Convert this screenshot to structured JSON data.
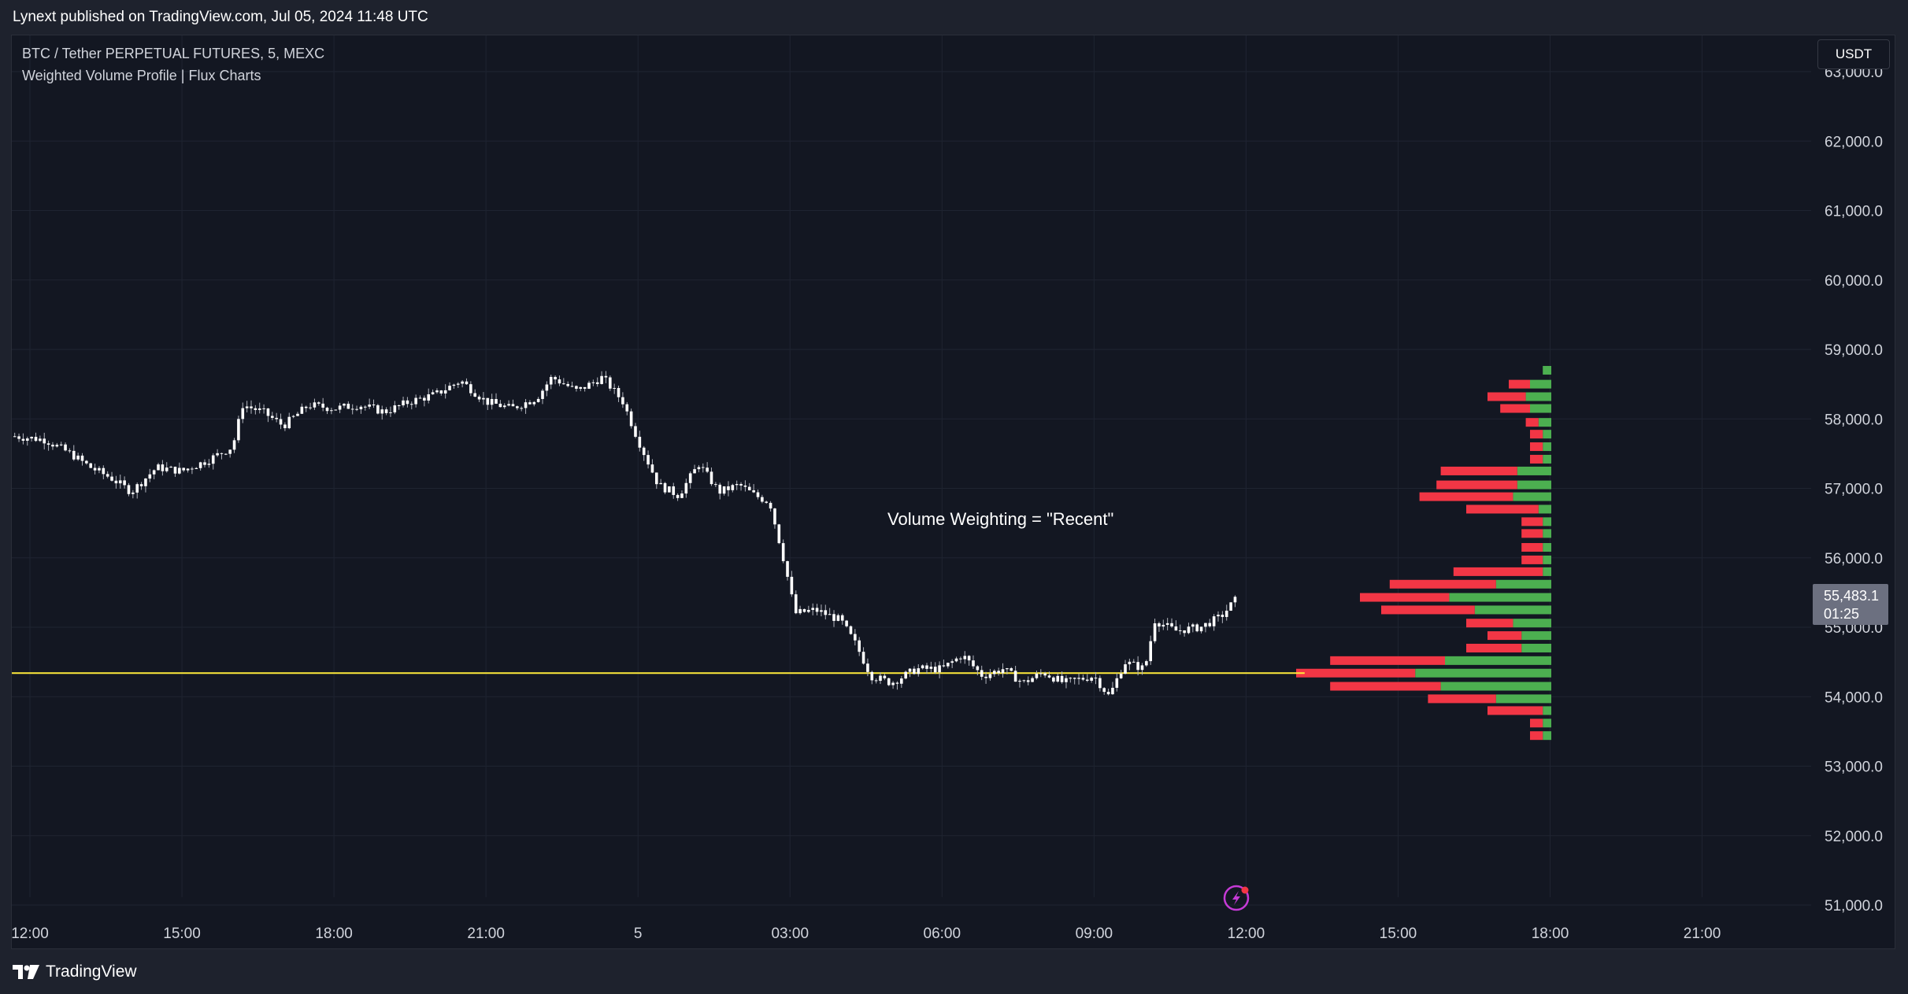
{
  "header": {
    "published_text": "Lynext published on TradingView.com, Jul 05, 2024 11:48 UTC"
  },
  "legend": {
    "symbol_line": "BTC / Tether PERPETUAL FUTURES, 5, MEXC",
    "indicator_line": "Weighted Volume Profile | Flux Charts"
  },
  "toolbar": {
    "currency_label": "USDT"
  },
  "price_tag": {
    "price": "55,483.1",
    "countdown": "01:25"
  },
  "footer": {
    "logo_text": "TradingView",
    "logo_icon": "tradingview-logo-icon"
  },
  "icons": {
    "replay": "lightning-bolt-icon"
  },
  "colors": {
    "background": "#131722",
    "candles": "#ffffff",
    "poc_line": "#ffeb3b",
    "volume_sell": "#f23645",
    "volume_buy": "#4caf50",
    "price_tag": "#6c7080"
  },
  "chart_data": {
    "type": "candlestick",
    "title": "BTC / Tether PERPETUAL FUTURES, 5, MEXC",
    "annotation": "Volume Weighting = \"Recent\"",
    "x_tick_labels": [
      "12:00",
      "15:00",
      "18:00",
      "21:00",
      "5",
      "03:00",
      "06:00",
      "09:00",
      "12:00",
      "15:00",
      "18:00",
      "21:00"
    ],
    "x_tick_hours": [
      0,
      3,
      6,
      9,
      12,
      15,
      18,
      21,
      24,
      27,
      30,
      33
    ],
    "y_tick_labels": [
      "51,000.0",
      "52,000.0",
      "53,000.0",
      "54,000.0",
      "55,000.0",
      "56,000.0",
      "57,000.0",
      "58,000.0",
      "59,000.0",
      "60,000.0",
      "61,000.0",
      "62,000.0",
      "63,000.0"
    ],
    "y_tick_values": [
      51000,
      52000,
      53000,
      54000,
      55000,
      56000,
      57000,
      58000,
      59000,
      60000,
      61000,
      62000,
      63000
    ],
    "ylim": [
      50800,
      63100
    ],
    "grid": true,
    "price_path": [
      [
        -0.3,
        57750
      ],
      [
        0.3,
        57700
      ],
      [
        0.8,
        57500
      ],
      [
        1.2,
        57300
      ],
      [
        1.6,
        57150
      ],
      [
        2.0,
        56950
      ],
      [
        2.5,
        57300
      ],
      [
        3.0,
        57250
      ],
      [
        3.5,
        57400
      ],
      [
        4.0,
        57600
      ],
      [
        4.2,
        58200
      ],
      [
        4.6,
        58100
      ],
      [
        5.0,
        57900
      ],
      [
        5.5,
        58200
      ],
      [
        6.0,
        58150
      ],
      [
        6.5,
        58200
      ],
      [
        7.0,
        58100
      ],
      [
        7.5,
        58250
      ],
      [
        8.0,
        58350
      ],
      [
        8.5,
        58550
      ],
      [
        9.0,
        58250
      ],
      [
        9.5,
        58150
      ],
      [
        10.0,
        58300
      ],
      [
        10.3,
        58600
      ],
      [
        10.8,
        58400
      ],
      [
        11.3,
        58600
      ],
      [
        11.7,
        58250
      ],
      [
        12.0,
        57700
      ],
      [
        12.4,
        57050
      ],
      [
        12.8,
        56900
      ],
      [
        13.2,
        57350
      ],
      [
        13.6,
        56950
      ],
      [
        14.0,
        57050
      ],
      [
        14.3,
        56900
      ],
      [
        14.6,
        56800
      ],
      [
        14.9,
        55900
      ],
      [
        15.1,
        55200
      ],
      [
        15.5,
        55250
      ],
      [
        16.0,
        55100
      ],
      [
        16.3,
        54750
      ],
      [
        16.6,
        54300
      ],
      [
        17.0,
        54200
      ],
      [
        17.5,
        54400
      ],
      [
        18.0,
        54400
      ],
      [
        18.4,
        54600
      ],
      [
        18.8,
        54300
      ],
      [
        19.2,
        54400
      ],
      [
        19.6,
        54200
      ],
      [
        20.0,
        54350
      ],
      [
        20.4,
        54200
      ],
      [
        21.0,
        54300
      ],
      [
        21.3,
        54000
      ],
      [
        21.6,
        54500
      ],
      [
        22.0,
        54400
      ],
      [
        22.2,
        55100
      ],
      [
        22.6,
        54950
      ],
      [
        23.1,
        55000
      ],
      [
        23.5,
        55150
      ],
      [
        23.8,
        55400
      ]
    ],
    "volume_profile": {
      "rows": [
        {
          "price": 58700,
          "buy": 0.02,
          "sell": 0.0
        },
        {
          "price": 58500,
          "buy": 0.05,
          "sell": 0.05
        },
        {
          "price": 58320,
          "buy": 0.06,
          "sell": 0.09
        },
        {
          "price": 58150,
          "buy": 0.05,
          "sell": 0.07
        },
        {
          "price": 57950,
          "buy": 0.03,
          "sell": 0.03
        },
        {
          "price": 57780,
          "buy": 0.02,
          "sell": 0.03
        },
        {
          "price": 57600,
          "buy": 0.02,
          "sell": 0.03
        },
        {
          "price": 57420,
          "buy": 0.02,
          "sell": 0.03
        },
        {
          "price": 57250,
          "buy": 0.08,
          "sell": 0.18
        },
        {
          "price": 57050,
          "buy": 0.08,
          "sell": 0.19
        },
        {
          "price": 56880,
          "buy": 0.09,
          "sell": 0.22
        },
        {
          "price": 56700,
          "buy": 0.03,
          "sell": 0.17
        },
        {
          "price": 56520,
          "buy": 0.02,
          "sell": 0.05
        },
        {
          "price": 56350,
          "buy": 0.02,
          "sell": 0.05
        },
        {
          "price": 56150,
          "buy": 0.02,
          "sell": 0.05
        },
        {
          "price": 55970,
          "buy": 0.02,
          "sell": 0.05
        },
        {
          "price": 55800,
          "buy": 0.02,
          "sell": 0.21
        },
        {
          "price": 55620,
          "buy": 0.13,
          "sell": 0.25
        },
        {
          "price": 55430,
          "buy": 0.24,
          "sell": 0.21
        },
        {
          "price": 55250,
          "buy": 0.18,
          "sell": 0.22
        },
        {
          "price": 55060,
          "buy": 0.09,
          "sell": 0.11
        },
        {
          "price": 54880,
          "buy": 0.07,
          "sell": 0.08
        },
        {
          "price": 54700,
          "buy": 0.07,
          "sell": 0.13
        },
        {
          "price": 54520,
          "buy": 0.25,
          "sell": 0.27
        },
        {
          "price": 54340,
          "buy": 0.32,
          "sell": 0.28
        },
        {
          "price": 54150,
          "buy": 0.26,
          "sell": 0.26
        },
        {
          "price": 53970,
          "buy": 0.13,
          "sell": 0.16
        },
        {
          "price": 53800,
          "buy": 0.02,
          "sell": 0.13
        },
        {
          "price": 53620,
          "buy": 0.02,
          "sell": 0.03
        },
        {
          "price": 53440,
          "buy": 0.02,
          "sell": 0.03
        }
      ]
    },
    "poc_price": 54340
  }
}
